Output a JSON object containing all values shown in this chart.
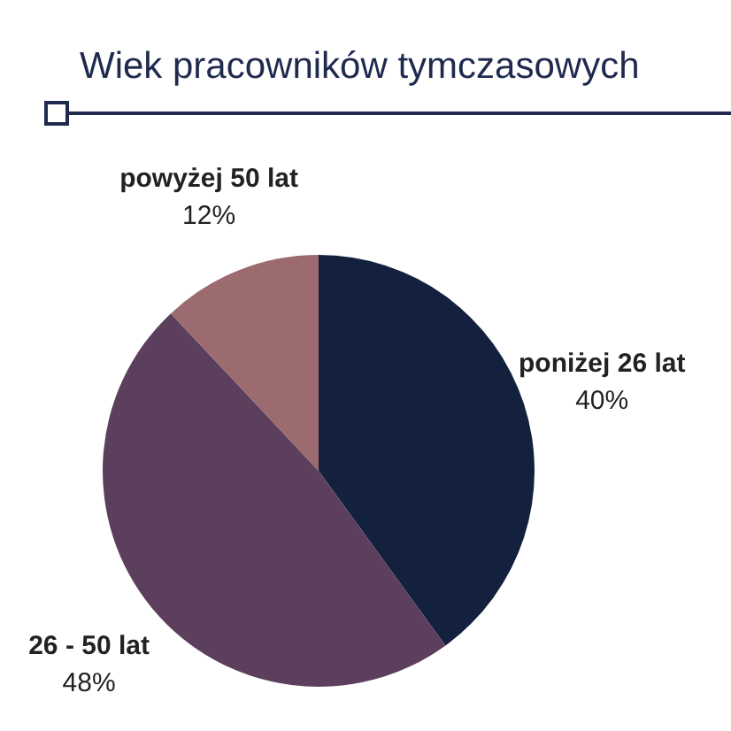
{
  "chart_data": {
    "type": "pie",
    "title": "Wiek pracowników tymczasowych",
    "categories": [
      "poniżej 26 lat",
      "26 - 50 lat",
      "powyżej 50 lat"
    ],
    "values": [
      40,
      48,
      12
    ],
    "value_labels": [
      "40%",
      "48%",
      "12%"
    ],
    "colors": [
      "#13213f",
      "#5c3f5c",
      "#9b6b6f"
    ]
  }
}
